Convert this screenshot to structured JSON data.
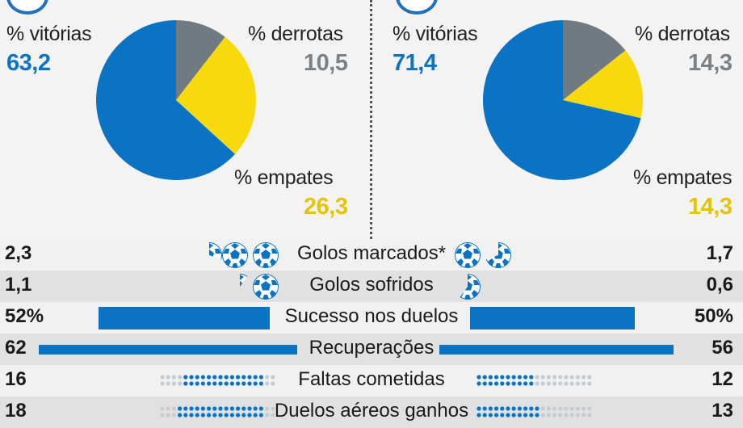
{
  "colors": {
    "blue": "#0b73c4",
    "yellow": "#f7d90d",
    "grey": "#707a80",
    "bar": "#0b73c4",
    "dot_empty": "#c7ccd1"
  },
  "chart_data": [
    {
      "type": "pie",
      "slices": [
        {
          "label": "% vitórias",
          "value": 63.2,
          "display": "63,2",
          "color": "#0b73c4"
        },
        {
          "label": "% empates",
          "value": 26.3,
          "display": "26,3",
          "color": "#f7d90d"
        },
        {
          "label": "% derrotas",
          "value": 10.5,
          "display": "10,5",
          "color": "#707a80"
        }
      ]
    },
    {
      "type": "pie",
      "slices": [
        {
          "label": "% vitórias",
          "value": 71.4,
          "display": "71,4",
          "color": "#0b73c4"
        },
        {
          "label": "% empates",
          "value": 14.3,
          "display": "14,3",
          "color": "#f7d90d"
        },
        {
          "label": "% derrotas",
          "value": 14.3,
          "display": "14,3",
          "color": "#707a80"
        }
      ]
    },
    {
      "type": "table",
      "rows": [
        {
          "label": "Golos marcados*",
          "left": 2.3,
          "right": 1.7,
          "left_display": "2,3",
          "right_display": "1,7",
          "viz": "balls"
        },
        {
          "label": "Golos sofridos",
          "left": 1.1,
          "right": 0.6,
          "left_display": "1,1",
          "right_display": "0,6",
          "viz": "balls"
        },
        {
          "label": "Sucesso nos duelos",
          "left": 52,
          "right": 50,
          "left_display": "52%",
          "right_display": "50%",
          "viz": "bar"
        },
        {
          "label": "Recuperações",
          "left": 62,
          "right": 56,
          "left_display": "62",
          "right_display": "56",
          "viz": "bar"
        },
        {
          "label": "Faltas cometidas",
          "left": 16,
          "right": 12,
          "left_display": "16",
          "right_display": "12",
          "viz": "dots"
        },
        {
          "label": "Duelos aéreos ganhos",
          "left": 18,
          "right": 13,
          "left_display": "18",
          "right_display": "13",
          "viz": "dots"
        }
      ]
    }
  ]
}
